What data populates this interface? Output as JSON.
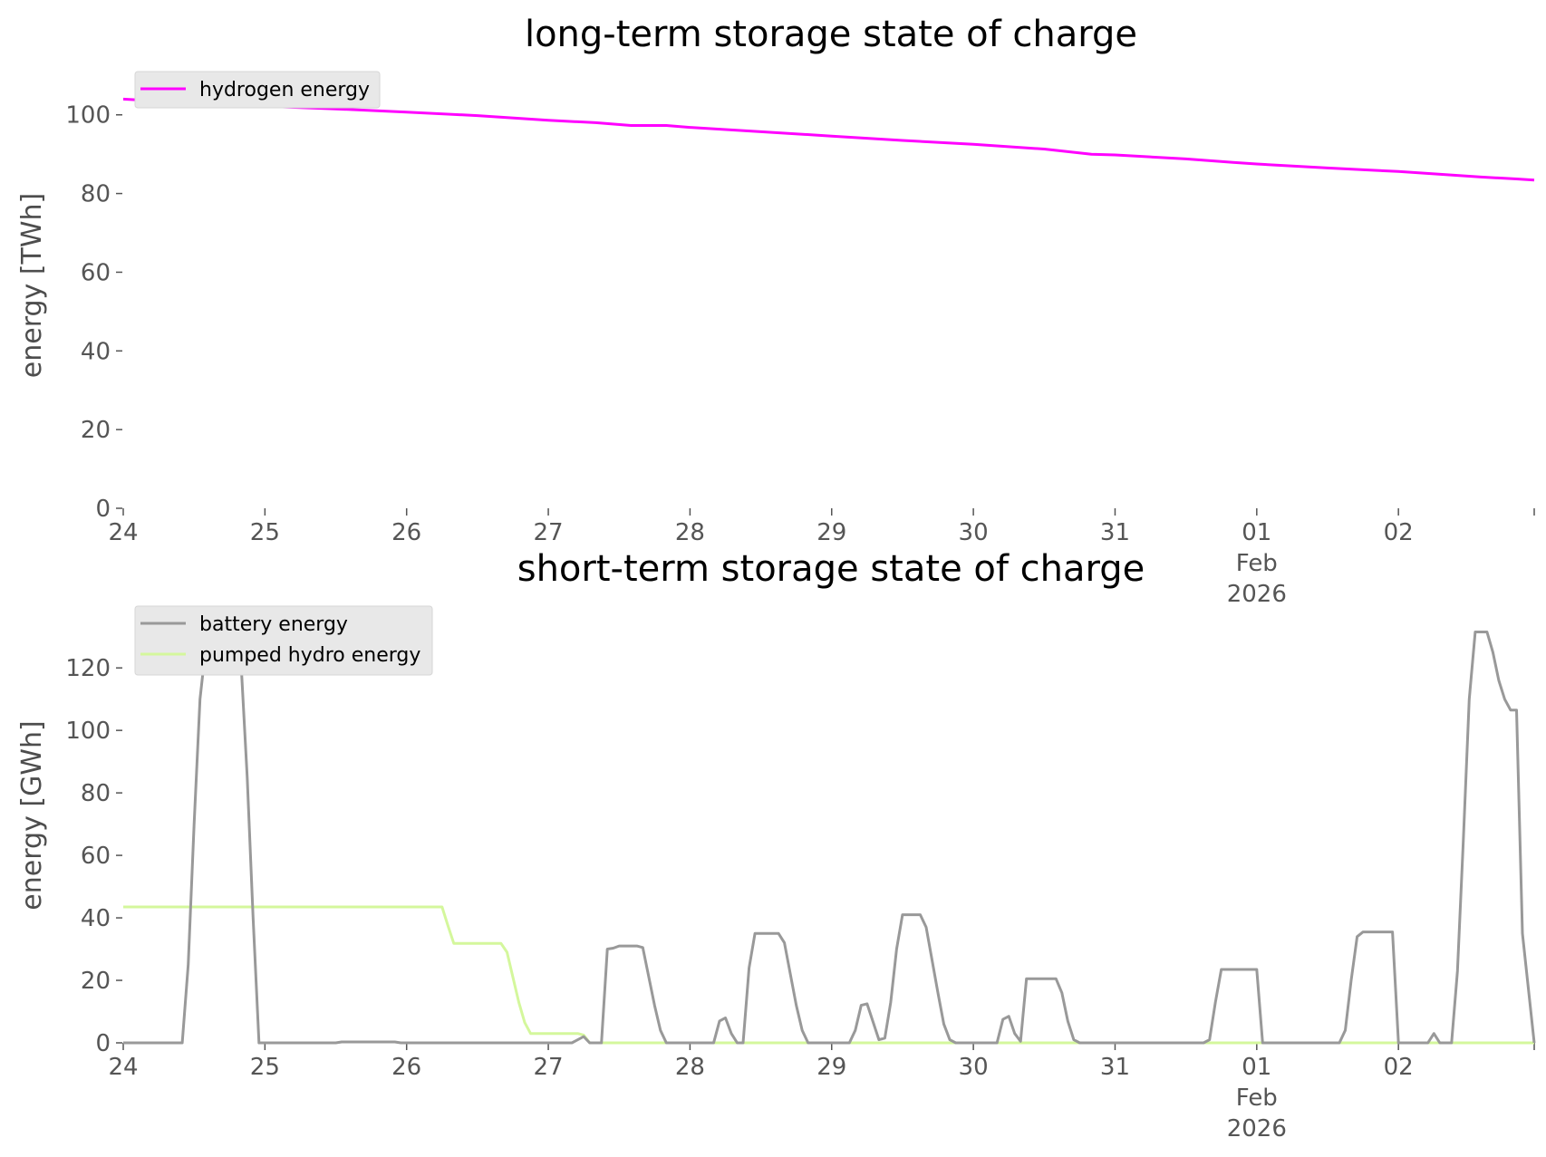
{
  "chart_data": [
    {
      "type": "line",
      "title": "long-term storage state of charge",
      "ylabel": "energy [TWh]",
      "xlabel": "",
      "ylim": [
        0,
        108
      ],
      "yticks": [
        "0",
        "20",
        "40",
        "60",
        "80",
        "100"
      ],
      "xlim": [
        "2026-01-24 00:00",
        "2026-02-02 23:00"
      ],
      "xticks": [
        {
          "date": "2026-01-24",
          "label": "24"
        },
        {
          "date": "2026-01-25",
          "label": "25"
        },
        {
          "date": "2026-01-26",
          "label": "26"
        },
        {
          "date": "2026-01-27",
          "label": "27"
        },
        {
          "date": "2026-01-28",
          "label": "28"
        },
        {
          "date": "2026-01-29",
          "label": "29"
        },
        {
          "date": "2026-01-30",
          "label": "30"
        },
        {
          "date": "2026-01-31",
          "label": "31"
        },
        {
          "date": "2026-02-01",
          "label": "01",
          "label2": "Feb",
          "label3": "2026"
        },
        {
          "date": "2026-02-02",
          "label": "02"
        }
      ],
      "grid": false,
      "legend": "top-left",
      "series": [
        {
          "name": "hydrogen energy",
          "color": "#ff00ff",
          "points": [
            [
              "2026-01-24 00:00",
              104.0
            ],
            [
              "2026-01-24 12:00",
              103.0
            ],
            [
              "2026-01-25 00:00",
              102.2
            ],
            [
              "2026-01-25 12:00",
              101.5
            ],
            [
              "2026-01-26 00:00",
              100.7
            ],
            [
              "2026-01-26 12:00",
              99.8
            ],
            [
              "2026-01-27 00:00",
              98.6
            ],
            [
              "2026-01-27 08:00",
              98.0
            ],
            [
              "2026-01-27 14:00",
              97.3
            ],
            [
              "2026-01-27 20:00",
              97.3
            ],
            [
              "2026-01-28 00:00",
              96.8
            ],
            [
              "2026-01-28 12:00",
              95.7
            ],
            [
              "2026-01-29 00:00",
              94.6
            ],
            [
              "2026-01-29 12:00",
              93.5
            ],
            [
              "2026-01-30 00:00",
              92.5
            ],
            [
              "2026-01-30 12:00",
              91.3
            ],
            [
              "2026-01-30 20:00",
              90.0
            ],
            [
              "2026-01-31 00:00",
              89.8
            ],
            [
              "2026-01-31 12:00",
              88.8
            ],
            [
              "2026-01-31 20:00",
              87.9
            ],
            [
              "2026-02-01 00:00",
              87.5
            ],
            [
              "2026-02-01 12:00",
              86.5
            ],
            [
              "2026-02-01 20:00",
              85.9
            ],
            [
              "2026-02-02 00:00",
              85.6
            ],
            [
              "2026-02-02 08:00",
              84.8
            ],
            [
              "2026-02-02 14:00",
              84.2
            ],
            [
              "2026-02-02 20:00",
              83.7
            ],
            [
              "2026-02-02 23:00",
              83.4
            ]
          ]
        }
      ]
    },
    {
      "type": "line",
      "title": "short-term storage state of charge",
      "ylabel": "energy [GWh]",
      "xlabel": "",
      "ylim": [
        0,
        136
      ],
      "yticks": [
        "0",
        "20",
        "40",
        "60",
        "80",
        "100",
        "120"
      ],
      "xlim": [
        "2026-01-24 00:00",
        "2026-02-02 23:00"
      ],
      "xticks": [
        {
          "date": "2026-01-24",
          "label": "24"
        },
        {
          "date": "2026-01-25",
          "label": "25"
        },
        {
          "date": "2026-01-26",
          "label": "26"
        },
        {
          "date": "2026-01-27",
          "label": "27"
        },
        {
          "date": "2026-01-28",
          "label": "28"
        },
        {
          "date": "2026-01-29",
          "label": "29"
        },
        {
          "date": "2026-01-30",
          "label": "30"
        },
        {
          "date": "2026-01-31",
          "label": "31"
        },
        {
          "date": "2026-02-01",
          "label": "01",
          "label2": "Feb",
          "label3": "2026"
        },
        {
          "date": "2026-02-02",
          "label": "02"
        }
      ],
      "grid": false,
      "legend": "top-left",
      "series": [
        {
          "name": "battery energy",
          "color": "#999999",
          "points": [
            [
              "2026-01-24 00:00",
              0
            ],
            [
              "2026-01-24 10:00",
              0
            ],
            [
              "2026-01-24 11:00",
              25
            ],
            [
              "2026-01-24 12:00",
              70
            ],
            [
              "2026-01-24 13:00",
              110
            ],
            [
              "2026-01-24 14:00",
              127
            ],
            [
              "2026-01-24 19:00",
              127
            ],
            [
              "2026-01-24 20:00",
              120
            ],
            [
              "2026-01-24 21:00",
              85
            ],
            [
              "2026-01-24 22:00",
              40
            ],
            [
              "2026-01-24 23:00",
              0
            ],
            [
              "2026-01-25 12:00",
              0
            ],
            [
              "2026-01-25 13:00",
              0.3
            ],
            [
              "2026-01-25 22:00",
              0.3
            ],
            [
              "2026-01-25 23:00",
              0
            ],
            [
              "2026-01-27 04:00",
              0
            ],
            [
              "2026-01-27 06:00",
              2
            ],
            [
              "2026-01-27 07:00",
              0
            ],
            [
              "2026-01-27 09:00",
              0
            ],
            [
              "2026-01-27 10:00",
              30
            ],
            [
              "2026-01-27 11:00",
              30.3
            ],
            [
              "2026-01-27 12:00",
              31
            ],
            [
              "2026-01-27 15:00",
              31
            ],
            [
              "2026-01-27 16:00",
              30.5
            ],
            [
              "2026-01-27 18:00",
              12
            ],
            [
              "2026-01-27 19:00",
              4
            ],
            [
              "2026-01-27 20:00",
              0
            ],
            [
              "2026-01-28 04:00",
              0
            ],
            [
              "2026-01-28 05:00",
              7
            ],
            [
              "2026-01-28 06:00",
              8
            ],
            [
              "2026-01-28 07:00",
              3
            ],
            [
              "2026-01-28 08:00",
              0
            ],
            [
              "2026-01-28 09:00",
              0
            ],
            [
              "2026-01-28 10:00",
              24
            ],
            [
              "2026-01-28 11:00",
              35
            ],
            [
              "2026-01-28 15:00",
              35
            ],
            [
              "2026-01-28 16:00",
              32
            ],
            [
              "2026-01-28 18:00",
              12
            ],
            [
              "2026-01-28 19:00",
              4
            ],
            [
              "2026-01-28 20:00",
              0
            ],
            [
              "2026-01-29 03:00",
              0
            ],
            [
              "2026-01-29 04:00",
              4
            ],
            [
              "2026-01-29 05:00",
              12
            ],
            [
              "2026-01-29 06:00",
              12.5
            ],
            [
              "2026-01-29 08:00",
              1
            ],
            [
              "2026-01-29 09:00",
              1.5
            ],
            [
              "2026-01-29 10:00",
              13
            ],
            [
              "2026-01-29 11:00",
              30
            ],
            [
              "2026-01-29 12:00",
              41
            ],
            [
              "2026-01-29 15:00",
              41
            ],
            [
              "2026-01-29 16:00",
              37
            ],
            [
              "2026-01-29 18:00",
              16
            ],
            [
              "2026-01-29 19:00",
              6
            ],
            [
              "2026-01-29 20:00",
              1
            ],
            [
              "2026-01-29 21:00",
              0
            ],
            [
              "2026-01-30 04:00",
              0
            ],
            [
              "2026-01-30 05:00",
              7.5
            ],
            [
              "2026-01-30 06:00",
              8.5
            ],
            [
              "2026-01-30 07:00",
              3
            ],
            [
              "2026-01-30 08:00",
              0.5
            ],
            [
              "2026-01-30 09:00",
              20.5
            ],
            [
              "2026-01-30 14:00",
              20.5
            ],
            [
              "2026-01-30 15:00",
              16
            ],
            [
              "2026-01-30 16:00",
              7
            ],
            [
              "2026-01-30 17:00",
              1
            ],
            [
              "2026-01-30 18:00",
              0
            ],
            [
              "2026-01-31 15:00",
              0
            ],
            [
              "2026-01-31 16:00",
              1
            ],
            [
              "2026-01-31 17:00",
              13
            ],
            [
              "2026-01-31 18:00",
              23.5
            ],
            [
              "2026-02-01 00:00",
              23.5
            ],
            [
              "2026-02-01 01:00",
              0
            ],
            [
              "2026-02-01 14:00",
              0
            ],
            [
              "2026-02-01 15:00",
              4
            ],
            [
              "2026-02-01 16:00",
              20
            ],
            [
              "2026-02-01 17:00",
              34
            ],
            [
              "2026-02-01 18:00",
              35.5
            ],
            [
              "2026-02-01 23:00",
              35.5
            ],
            [
              "2026-02-02 00:00",
              0
            ],
            [
              "2026-02-02 05:00",
              0
            ],
            [
              "2026-02-02 06:00",
              3
            ],
            [
              "2026-02-02 07:00",
              0
            ],
            [
              "2026-02-02 09:00",
              0
            ],
            [
              "2026-02-02 10:00",
              23
            ],
            [
              "2026-02-02 11:00",
              65
            ],
            [
              "2026-02-02 12:00",
              110
            ],
            [
              "2026-02-02 13:00",
              131.5
            ],
            [
              "2026-02-02 15:00",
              131.5
            ],
            [
              "2026-02-02 16:00",
              125
            ],
            [
              "2026-02-02 17:00",
              116
            ],
            [
              "2026-02-02 18:00",
              110
            ],
            [
              "2026-02-02 19:00",
              106.5
            ],
            [
              "2026-02-02 20:00",
              106.5
            ],
            [
              "2026-02-02 21:00",
              35
            ],
            [
              "2026-02-02 23:00",
              0
            ]
          ]
        },
        {
          "name": "pumped hydro energy",
          "color": "#d4f79c",
          "points": [
            [
              "2026-01-24 00:00",
              43.5
            ],
            [
              "2026-01-26 06:00",
              43.5
            ],
            [
              "2026-01-26 07:00",
              37.5
            ],
            [
              "2026-01-26 08:00",
              31.8
            ],
            [
              "2026-01-26 16:00",
              31.8
            ],
            [
              "2026-01-26 17:00",
              29
            ],
            [
              "2026-01-26 18:00",
              21
            ],
            [
              "2026-01-26 19:00",
              13
            ],
            [
              "2026-01-26 20:00",
              6.5
            ],
            [
              "2026-01-26 21:00",
              3
            ],
            [
              "2026-01-27 05:00",
              3
            ],
            [
              "2026-01-27 06:00",
              2.5
            ],
            [
              "2026-01-27 07:00",
              0
            ],
            [
              "2026-02-02 23:00",
              0
            ]
          ]
        }
      ]
    }
  ]
}
